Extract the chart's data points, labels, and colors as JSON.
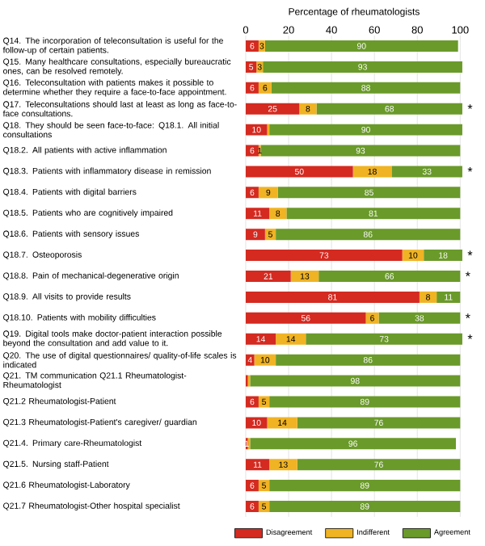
{
  "chart_data": {
    "type": "bar",
    "orientation": "horizontal",
    "stacked": true,
    "xlabel": "Percentage of rheumatologists",
    "categories": [
      "Q14. The incorporation of teleconsultation is useful for the follow-up of certain patients.",
      "Q15. Many healthcare consultations, especially bureaucratic ones, can be resolved remotely.",
      "Q16. Teleconsultation with patients makes it possible to determine whether they require a face-to-face appointment.",
      "Q17. Teleconsultations should last at least as long as face-to-face consultations.",
      "Q18. They should be seen face-to-face: Q18.1. All initial consultations",
      "Q18.2. All patients with active inflammation",
      "Q18.3. Patients with inflammatory disease in remission",
      "Q18.4. Patients with digital barriers",
      "Q18.5. Patients who are cognitively impaired",
      "Q18.6. Patients with sensory issues",
      "Q18.7. Osteoporosis",
      "Q18.8. Pain of mechanical-degenerative origin",
      "Q18.9. All visits to provide results",
      "Q18.10. Patients with mobility difficulties",
      "Q19. Digital tools make doctor-patient interaction possible beyond the consultation and add value to it.",
      "Q20. The use of digital questionnaires/ quality-of-life scales is indicated",
      "Q21. TM communication Q21.1 Rheumatologist-Rheumatologist",
      "Q21.2 Rheumatologist-Patient",
      "Q21.3 Rheumatologist-Patient's caregiver/ guardian",
      "Q21.4. Primary care-Rheumatologist",
      "Q21.5. Nursing staff-Patient",
      "Q21.6 Rheumatologist-Laboratory",
      "Q21.7 Rheumatologist-Other hospital specialist"
    ],
    "series": [
      {
        "name": "Disagreement",
        "color": "#d42a20",
        "values": [
          6,
          5,
          6,
          25,
          10,
          6,
          50,
          6,
          11,
          9,
          73,
          21,
          81,
          56,
          14,
          4,
          1,
          6,
          10,
          1,
          11,
          6,
          6
        ],
        "value_labels": [
          "6",
          "5",
          "6",
          "25",
          "10",
          "6",
          "50",
          "6",
          "11",
          "9",
          "73",
          "21",
          "81",
          "56",
          "14",
          "4",
          null,
          "6",
          "10",
          "1",
          "11",
          "6",
          "6"
        ]
      },
      {
        "name": "Indifferent",
        "color": "#f0b323",
        "values": [
          3,
          3,
          6,
          8,
          1,
          1,
          18,
          9,
          8,
          5,
          10,
          13,
          8,
          6,
          14,
          10,
          1,
          5,
          14,
          1,
          13,
          5,
          5
        ],
        "value_labels": [
          "3",
          "3",
          "6",
          "8",
          null,
          "1",
          "18",
          "9",
          "8",
          "5",
          "10",
          "13",
          "8",
          "6",
          "14",
          "10",
          null,
          "5",
          "14",
          null,
          "13",
          "5",
          "5"
        ]
      },
      {
        "name": "Agreement",
        "color": "#6a9a2a",
        "values": [
          90,
          93,
          88,
          68,
          90,
          93,
          33,
          85,
          81,
          86,
          18,
          66,
          11,
          38,
          73,
          86,
          98,
          89,
          76,
          96,
          76,
          89,
          89
        ],
        "value_labels": [
          "90",
          "93",
          "88",
          "68",
          "90",
          "93",
          "33",
          "85",
          "81",
          "86",
          "18",
          "66",
          "11",
          "38",
          "73",
          "86",
          "98",
          "89",
          "76",
          "96",
          "76",
          "89",
          "89"
        ]
      }
    ],
    "xlim": [
      0,
      101
    ],
    "xticks": [
      0,
      20,
      40,
      60,
      80,
      100
    ],
    "grid": "x",
    "legend": "bottom",
    "annotations": [
      {
        "text": "*",
        "y": "Q17. Teleconsultations should last at least as long as face-to-face consultations."
      },
      {
        "text": "*",
        "y": "Q18.3. Patients with inflammatory disease in remission"
      },
      {
        "text": "*",
        "y": "Q18.7. Osteoporosis"
      },
      {
        "text": "*",
        "y": "Q18.8. Pain of mechanical-degenerative origin"
      },
      {
        "text": "*",
        "y": "Q18.10. Patients with mobility difficulties"
      },
      {
        "text": "*",
        "y": "Q19. Digital tools make doctor-patient interaction possible beyond the consultation and add value to it."
      }
    ]
  }
}
